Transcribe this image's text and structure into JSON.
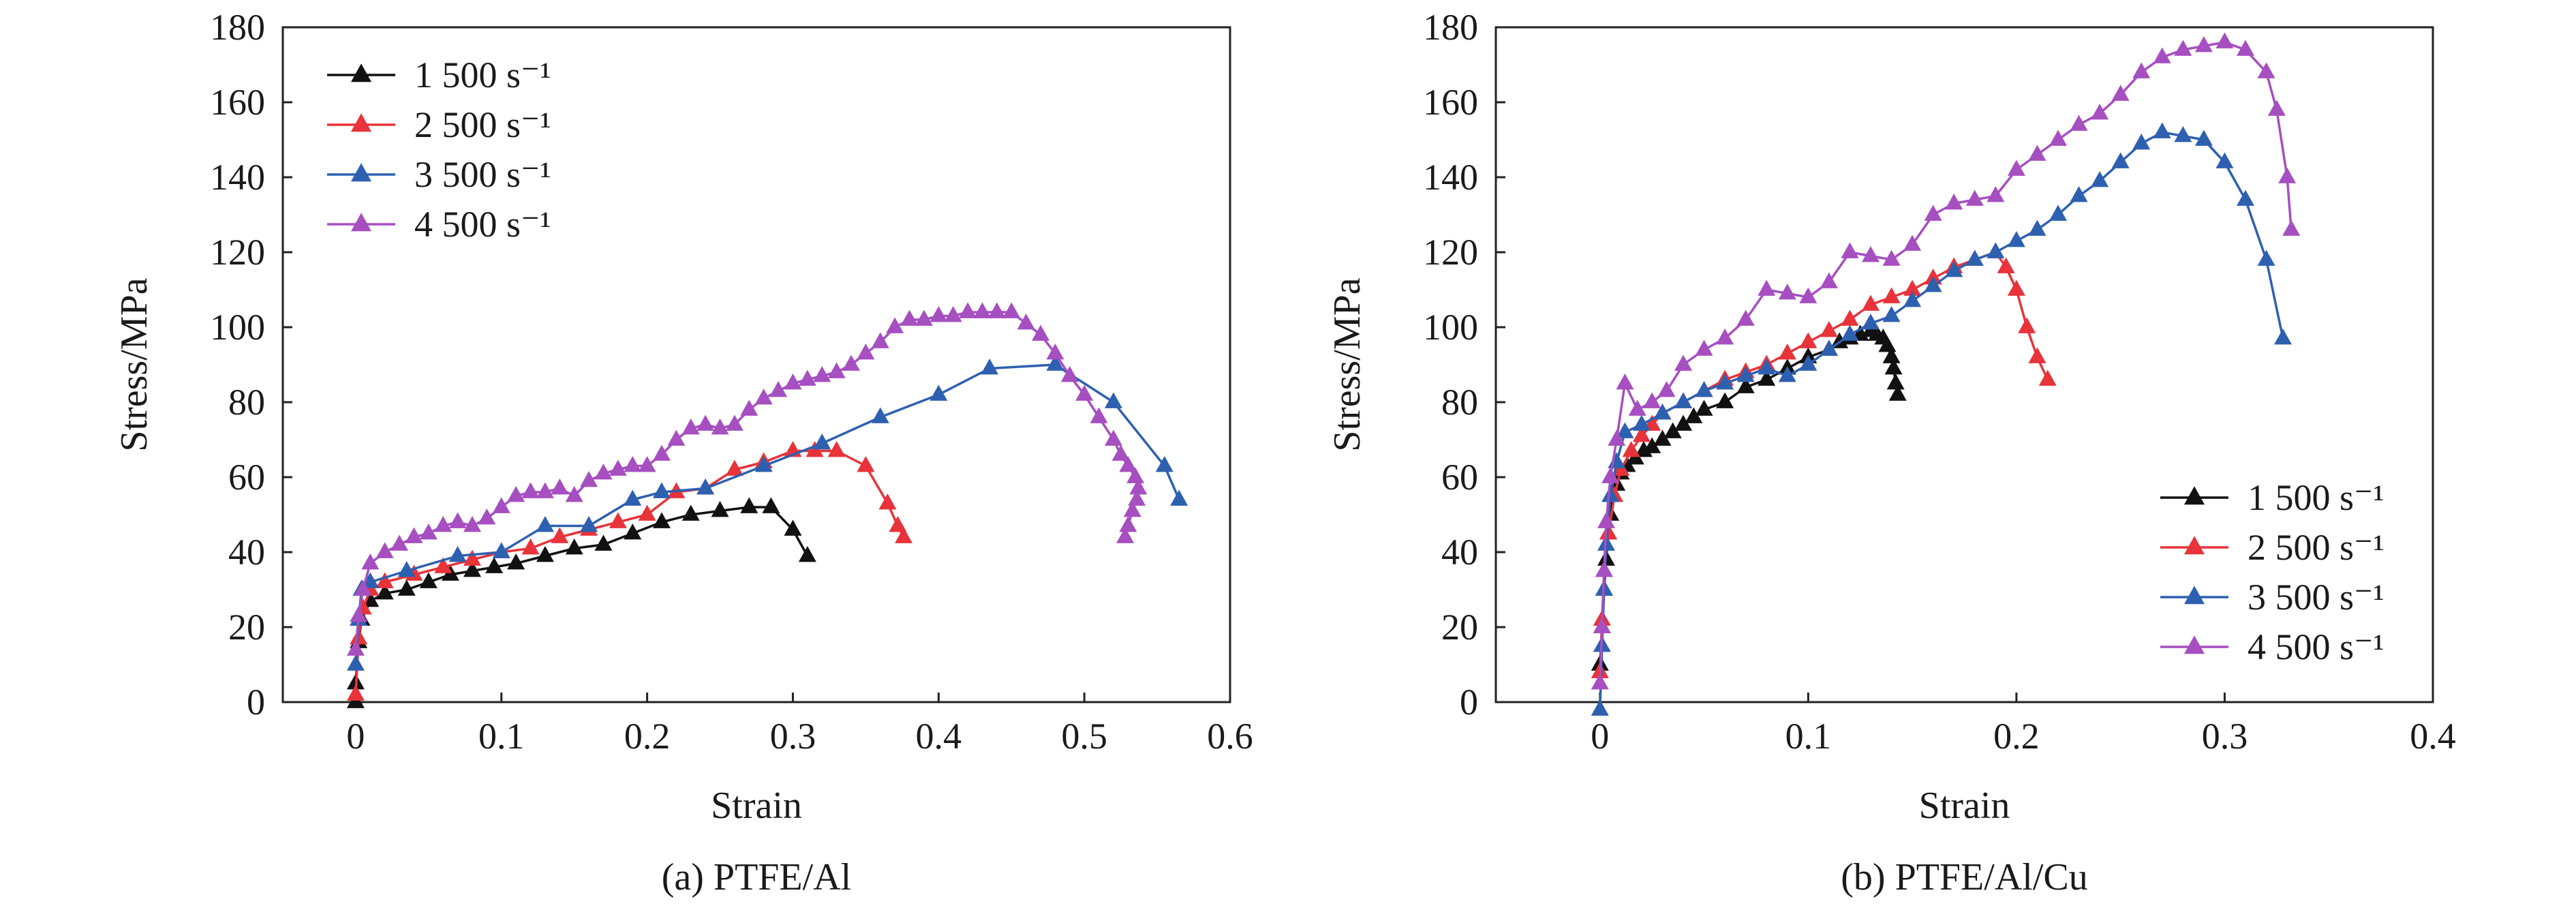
{
  "chart_data": [
    {
      "type": "line",
      "caption": "(a) PTFE/Al",
      "xlabel": "Strain",
      "ylabel": "Stress/MPa",
      "xlim": [
        -0.05,
        0.6
      ],
      "ylim": [
        0,
        180
      ],
      "xticks": [
        0,
        0.1,
        0.2,
        0.3,
        0.4,
        0.5,
        0.6
      ],
      "xticklabels": [
        "0",
        "0.1",
        "0.2",
        "0.3",
        "0.4",
        "0.5",
        "0.6"
      ],
      "yticks": [
        0,
        20,
        40,
        60,
        80,
        100,
        120,
        140,
        160,
        180
      ],
      "yticklabels": [
        "0",
        "20",
        "40",
        "60",
        "80",
        "100",
        "120",
        "140",
        "160",
        "180"
      ],
      "legend_position": "top-left",
      "marker": "triangle",
      "series": [
        {
          "name": "1 500 s⁻¹",
          "color": "#111111",
          "x": [
            0,
            0,
            0.002,
            0.004,
            0.01,
            0.02,
            0.035,
            0.05,
            0.065,
            0.08,
            0.095,
            0.11,
            0.13,
            0.15,
            0.17,
            0.19,
            0.21,
            0.23,
            0.25,
            0.27,
            0.285,
            0.3,
            0.31
          ],
          "y": [
            0,
            5,
            16,
            22,
            27,
            29,
            30,
            32,
            34,
            35,
            36,
            37,
            39,
            41,
            42,
            45,
            48,
            50,
            51,
            52,
            52,
            46,
            39
          ]
        },
        {
          "name": "2 500 s⁻¹",
          "color": "#e8333a",
          "x": [
            0,
            0.002,
            0.005,
            0.01,
            0.02,
            0.04,
            0.06,
            0.08,
            0.1,
            0.12,
            0.14,
            0.16,
            0.18,
            0.2,
            0.22,
            0.24,
            0.26,
            0.28,
            0.3,
            0.315,
            0.33,
            0.35,
            0.365,
            0.372,
            0.376
          ],
          "y": [
            2,
            17,
            25,
            30,
            32,
            34,
            36,
            38,
            40,
            41,
            44,
            46,
            48,
            50,
            56,
            57,
            62,
            64,
            67,
            67,
            67,
            63,
            53,
            47,
            44
          ]
        },
        {
          "name": "3 500 s⁻¹",
          "color": "#2e60b0",
          "x": [
            0,
            0.002,
            0.004,
            0.01,
            0.035,
            0.07,
            0.1,
            0.13,
            0.16,
            0.19,
            0.21,
            0.24,
            0.28,
            0.32,
            0.36,
            0.4,
            0.435,
            0.48,
            0.52,
            0.555,
            0.565
          ],
          "y": [
            10,
            22,
            30,
            32,
            35,
            39,
            40,
            47,
            47,
            54,
            56,
            57,
            63,
            69,
            76,
            82,
            89,
            90,
            80,
            63,
            54
          ]
        },
        {
          "name": "4 500 s⁻¹",
          "color": "#a64fc0",
          "x": [
            0,
            0.002,
            0.005,
            0.01,
            0.02,
            0.03,
            0.04,
            0.05,
            0.06,
            0.07,
            0.08,
            0.09,
            0.1,
            0.11,
            0.12,
            0.13,
            0.14,
            0.15,
            0.16,
            0.17,
            0.18,
            0.19,
            0.2,
            0.21,
            0.22,
            0.23,
            0.24,
            0.25,
            0.26,
            0.27,
            0.28,
            0.29,
            0.3,
            0.31,
            0.32,
            0.33,
            0.34,
            0.35,
            0.36,
            0.37,
            0.38,
            0.39,
            0.4,
            0.41,
            0.42,
            0.43,
            0.44,
            0.45,
            0.46,
            0.47,
            0.48,
            0.49,
            0.5,
            0.51,
            0.52,
            0.525,
            0.53,
            0.535,
            0.537,
            0.536,
            0.533,
            0.53,
            0.528
          ],
          "y": [
            14,
            23,
            30,
            37,
            40,
            42,
            44,
            45,
            47,
            48,
            47,
            49,
            52,
            55,
            56,
            56,
            57,
            55,
            59,
            61,
            62,
            63,
            63,
            66,
            70,
            73,
            74,
            73,
            74,
            78,
            81,
            83,
            85,
            86,
            87,
            88,
            90,
            93,
            96,
            100,
            102,
            102,
            103,
            103,
            104,
            104,
            104,
            104,
            101,
            98,
            93,
            87,
            82,
            76,
            70,
            66,
            63,
            60,
            57,
            54,
            51,
            47,
            44
          ]
        }
      ]
    },
    {
      "type": "line",
      "caption": "(b) PTFE/Al/Cu",
      "xlabel": "Strain",
      "ylabel": "Stress/MPa",
      "xlim": [
        -0.05,
        0.4
      ],
      "ylim": [
        0,
        180
      ],
      "xticks": [
        0,
        0.1,
        0.2,
        0.3,
        0.4
      ],
      "xticklabels": [
        "0",
        "0.1",
        "0.2",
        "0.3",
        "0.4"
      ],
      "yticks": [
        0,
        20,
        40,
        60,
        80,
        100,
        120,
        140,
        160,
        180
      ],
      "yticklabels": [
        "0",
        "20",
        "40",
        "60",
        "80",
        "100",
        "120",
        "140",
        "160",
        "180"
      ],
      "legend_position": "bottom-right",
      "marker": "triangle",
      "series": [
        {
          "name": "1 500 s⁻¹",
          "color": "#111111",
          "x": [
            0,
            0.001,
            0.002,
            0.003,
            0.004,
            0.005,
            0.006,
            0.008,
            0.01,
            0.013,
            0.017,
            0.021,
            0.025,
            0.03,
            0.035,
            0.04,
            0.045,
            0.05,
            0.06,
            0.07,
            0.08,
            0.09,
            0.1,
            0.11,
            0.115,
            0.12,
            0.125,
            0.13,
            0.133,
            0.136,
            0.138,
            0.14,
            0.141,
            0.142,
            0.143
          ],
          "y": [
            10,
            20,
            30,
            38,
            45,
            50,
            55,
            58,
            61,
            63,
            65,
            67,
            68,
            70,
            72,
            74,
            76,
            78,
            80,
            84,
            86,
            89,
            92,
            94,
            96,
            97,
            98,
            99,
            98,
            97,
            95,
            92,
            89,
            85,
            82
          ]
        },
        {
          "name": "2 500 s⁻¹",
          "color": "#e8333a",
          "x": [
            0,
            0.001,
            0.002,
            0.004,
            0.007,
            0.01,
            0.015,
            0.02,
            0.025,
            0.03,
            0.04,
            0.05,
            0.06,
            0.07,
            0.08,
            0.09,
            0.1,
            0.11,
            0.12,
            0.13,
            0.14,
            0.15,
            0.16,
            0.17,
            0.18,
            0.19,
            0.195,
            0.2,
            0.205,
            0.21,
            0.215
          ],
          "y": [
            8,
            22,
            35,
            45,
            55,
            62,
            67,
            71,
            74,
            77,
            80,
            83,
            86,
            88,
            90,
            93,
            96,
            99,
            102,
            106,
            108,
            110,
            113,
            116,
            118,
            120,
            116,
            110,
            100,
            92,
            86
          ]
        },
        {
          "name": "3 500 s⁻¹",
          "color": "#2e60b0",
          "x": [
            0,
            0.001,
            0.002,
            0.003,
            0.005,
            0.008,
            0.012,
            0.02,
            0.03,
            0.04,
            0.05,
            0.06,
            0.07,
            0.08,
            0.09,
            0.1,
            0.11,
            0.12,
            0.13,
            0.14,
            0.15,
            0.16,
            0.17,
            0.18,
            0.19,
            0.2,
            0.21,
            0.22,
            0.23,
            0.24,
            0.25,
            0.26,
            0.27,
            0.28,
            0.29,
            0.3,
            0.31,
            0.32,
            0.328
          ],
          "y": [
            -2,
            15,
            30,
            42,
            55,
            64,
            72,
            74,
            77,
            80,
            83,
            85,
            87,
            89,
            87,
            90,
            94,
            98,
            101,
            103,
            107,
            111,
            115,
            118,
            120,
            123,
            126,
            130,
            135,
            139,
            144,
            149,
            152,
            151,
            150,
            144,
            134,
            118,
            97
          ]
        },
        {
          "name": "4 500 s⁻¹",
          "color": "#a64fc0",
          "x": [
            0,
            0.001,
            0.002,
            0.003,
            0.005,
            0.008,
            0.012,
            0.018,
            0.025,
            0.032,
            0.04,
            0.05,
            0.06,
            0.07,
            0.08,
            0.09,
            0.1,
            0.11,
            0.12,
            0.13,
            0.14,
            0.15,
            0.16,
            0.17,
            0.18,
            0.19,
            0.2,
            0.21,
            0.22,
            0.23,
            0.24,
            0.25,
            0.26,
            0.27,
            0.28,
            0.29,
            0.3,
            0.31,
            0.32,
            0.325,
            0.33,
            0.332
          ],
          "y": [
            5,
            20,
            35,
            48,
            60,
            70,
            85,
            78,
            80,
            83,
            90,
            94,
            97,
            102,
            110,
            109,
            108,
            112,
            120,
            119,
            118,
            122,
            130,
            133,
            134,
            135,
            142,
            146,
            150,
            154,
            157,
            162,
            168,
            172,
            174,
            175,
            176,
            174,
            168,
            158,
            140,
            126
          ]
        }
      ]
    }
  ]
}
